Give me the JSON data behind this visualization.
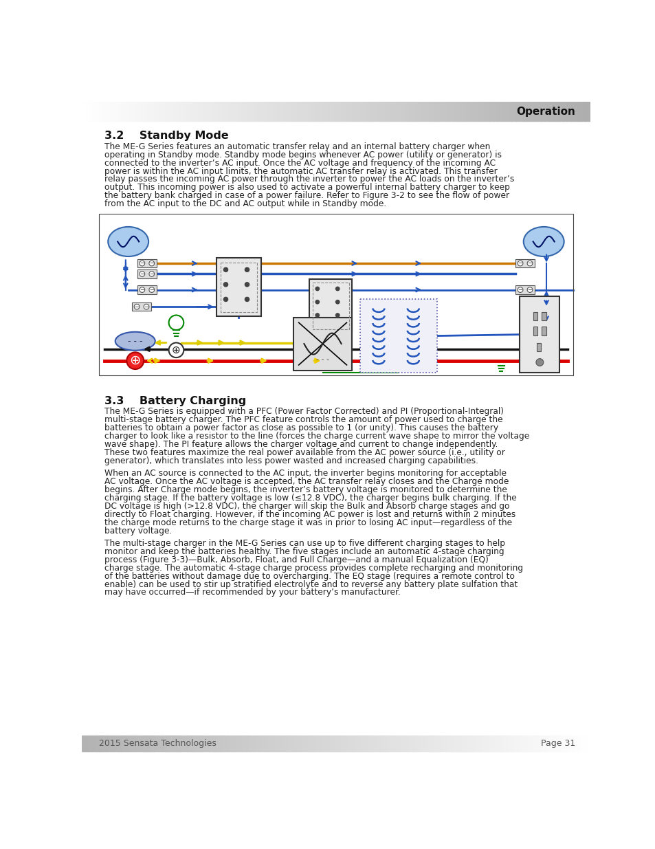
{
  "page_bg": "#ffffff",
  "header_text": "Operation",
  "header_text_color": "#111111",
  "footer_left": "2015 Sensata Technologies",
  "footer_right": "Page 31",
  "footer_text_color": "#555555",
  "section1_title": "3.2    Standby Mode",
  "section1_body": "The ME-G Series features an automatic transfer relay and an internal battery charger when\noperating in Standby mode. Standby mode begins whenever AC power (utility or generator) is\nconnected to the inverter’s AC input. Once the AC voltage and frequency of the incoming AC\npower is within the AC input limits, the automatic AC transfer relay is activated. This transfer\nrelay passes the incoming AC power through the inverter to power the AC loads on the inverter’s\noutput. This incoming power is also used to activate a powerful internal battery charger to keep\nthe battery bank charged in case of a power failure. Refer to Figure 3-2 to see the flow of power\nfrom the AC input to the DC and AC output while in Standby mode.",
  "section2_title": "3.3    Battery Charging",
  "section2_body1": "The ME-G Series is equipped with a PFC (Power Factor Corrected) and PI (Proportional-Integral)\nmulti-stage battery charger. The PFC feature controls the amount of power used to charge the\nbatteries to obtain a power factor as close as possible to 1 (or unity). This causes the battery\ncharger to look like a resistor to the line (forces the charge current wave shape to mirror the voltage\nwave shape). The PI feature allows the charger voltage and current to change independently.\nThese two features maximize the real power available from the AC power source (i.e., utility or\ngenerator), which translates into less power wasted and increased charging capabilities.",
  "section2_body2": "When an AC source is connected to the AC input, the inverter begins monitoring for acceptable\nAC voltage. Once the AC voltage is accepted, the AC transfer relay closes and the Charge mode\nbegins. After Charge mode begins, the inverter’s battery voltage is monitored to determine the\ncharging stage. If the battery voltage is low (≤12.8 VDC), the charger begins bulk charging. If the\nDC voltage is high (>12.8 VDC), the charger will skip the Bulk and Absorb charge stages and go\ndirectly to Float charging. However, if the incoming AC power is lost and returns within 2 minutes\nthe charge mode returns to the charge stage it was in prior to losing AC input—regardless of the\nbattery voltage.",
  "section2_body3": "The multi-stage charger in the ME-G Series can use up to five different charging stages to help\nmonitor and keep the batteries healthy. The five stages include an automatic 4-stage charging\nprocess (Figure 3-3)—Bulk, Absorb, Float, and Full Charge—and a manual Equalization (EQ)\ncharge stage. The automatic 4-stage charge process provides complete recharging and monitoring\nof the batteries without damage due to overcharging. The EQ stage (requires a remote control to\nenable) can be used to stir up stratified electrolyte and to reverse any battery plate sulfation that\nmay have occurred—if recommended by your battery’s manufacturer.",
  "title_fontsize": 11.5,
  "body_fontsize": 8.8,
  "header_fontsize": 11,
  "footer_fontsize": 9
}
